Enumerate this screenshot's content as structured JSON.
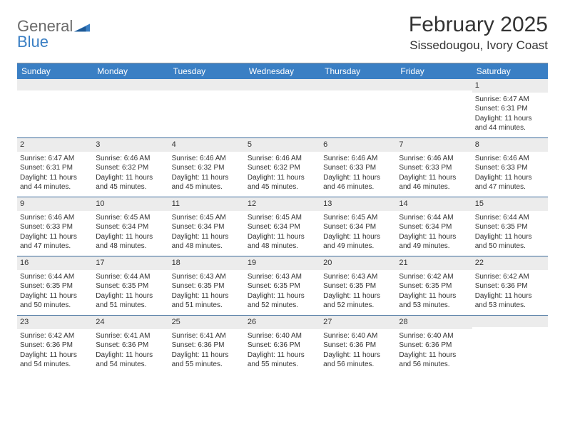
{
  "colors": {
    "header_bg": "#3a7fc4",
    "header_text": "#ffffff",
    "daynum_bg": "#ececec",
    "week_border": "#3a6a9a",
    "body_text": "#333333",
    "logo_gray": "#6a6a6a",
    "logo_blue": "#3a7fc4"
  },
  "logo": {
    "part1": "General",
    "part2": "Blue"
  },
  "title": "February 2025",
  "location": "Sissedougou, Ivory Coast",
  "day_names": [
    "Sunday",
    "Monday",
    "Tuesday",
    "Wednesday",
    "Thursday",
    "Friday",
    "Saturday"
  ],
  "weeks": [
    [
      null,
      null,
      null,
      null,
      null,
      null,
      {
        "n": "1",
        "sr": "Sunrise: 6:47 AM",
        "ss": "Sunset: 6:31 PM",
        "dl1": "Daylight: 11 hours",
        "dl2": "and 44 minutes."
      }
    ],
    [
      {
        "n": "2",
        "sr": "Sunrise: 6:47 AM",
        "ss": "Sunset: 6:31 PM",
        "dl1": "Daylight: 11 hours",
        "dl2": "and 44 minutes."
      },
      {
        "n": "3",
        "sr": "Sunrise: 6:46 AM",
        "ss": "Sunset: 6:32 PM",
        "dl1": "Daylight: 11 hours",
        "dl2": "and 45 minutes."
      },
      {
        "n": "4",
        "sr": "Sunrise: 6:46 AM",
        "ss": "Sunset: 6:32 PM",
        "dl1": "Daylight: 11 hours",
        "dl2": "and 45 minutes."
      },
      {
        "n": "5",
        "sr": "Sunrise: 6:46 AM",
        "ss": "Sunset: 6:32 PM",
        "dl1": "Daylight: 11 hours",
        "dl2": "and 45 minutes."
      },
      {
        "n": "6",
        "sr": "Sunrise: 6:46 AM",
        "ss": "Sunset: 6:33 PM",
        "dl1": "Daylight: 11 hours",
        "dl2": "and 46 minutes."
      },
      {
        "n": "7",
        "sr": "Sunrise: 6:46 AM",
        "ss": "Sunset: 6:33 PM",
        "dl1": "Daylight: 11 hours",
        "dl2": "and 46 minutes."
      },
      {
        "n": "8",
        "sr": "Sunrise: 6:46 AM",
        "ss": "Sunset: 6:33 PM",
        "dl1": "Daylight: 11 hours",
        "dl2": "and 47 minutes."
      }
    ],
    [
      {
        "n": "9",
        "sr": "Sunrise: 6:46 AM",
        "ss": "Sunset: 6:33 PM",
        "dl1": "Daylight: 11 hours",
        "dl2": "and 47 minutes."
      },
      {
        "n": "10",
        "sr": "Sunrise: 6:45 AM",
        "ss": "Sunset: 6:34 PM",
        "dl1": "Daylight: 11 hours",
        "dl2": "and 48 minutes."
      },
      {
        "n": "11",
        "sr": "Sunrise: 6:45 AM",
        "ss": "Sunset: 6:34 PM",
        "dl1": "Daylight: 11 hours",
        "dl2": "and 48 minutes."
      },
      {
        "n": "12",
        "sr": "Sunrise: 6:45 AM",
        "ss": "Sunset: 6:34 PM",
        "dl1": "Daylight: 11 hours",
        "dl2": "and 48 minutes."
      },
      {
        "n": "13",
        "sr": "Sunrise: 6:45 AM",
        "ss": "Sunset: 6:34 PM",
        "dl1": "Daylight: 11 hours",
        "dl2": "and 49 minutes."
      },
      {
        "n": "14",
        "sr": "Sunrise: 6:44 AM",
        "ss": "Sunset: 6:34 PM",
        "dl1": "Daylight: 11 hours",
        "dl2": "and 49 minutes."
      },
      {
        "n": "15",
        "sr": "Sunrise: 6:44 AM",
        "ss": "Sunset: 6:35 PM",
        "dl1": "Daylight: 11 hours",
        "dl2": "and 50 minutes."
      }
    ],
    [
      {
        "n": "16",
        "sr": "Sunrise: 6:44 AM",
        "ss": "Sunset: 6:35 PM",
        "dl1": "Daylight: 11 hours",
        "dl2": "and 50 minutes."
      },
      {
        "n": "17",
        "sr": "Sunrise: 6:44 AM",
        "ss": "Sunset: 6:35 PM",
        "dl1": "Daylight: 11 hours",
        "dl2": "and 51 minutes."
      },
      {
        "n": "18",
        "sr": "Sunrise: 6:43 AM",
        "ss": "Sunset: 6:35 PM",
        "dl1": "Daylight: 11 hours",
        "dl2": "and 51 minutes."
      },
      {
        "n": "19",
        "sr": "Sunrise: 6:43 AM",
        "ss": "Sunset: 6:35 PM",
        "dl1": "Daylight: 11 hours",
        "dl2": "and 52 minutes."
      },
      {
        "n": "20",
        "sr": "Sunrise: 6:43 AM",
        "ss": "Sunset: 6:35 PM",
        "dl1": "Daylight: 11 hours",
        "dl2": "and 52 minutes."
      },
      {
        "n": "21",
        "sr": "Sunrise: 6:42 AM",
        "ss": "Sunset: 6:35 PM",
        "dl1": "Daylight: 11 hours",
        "dl2": "and 53 minutes."
      },
      {
        "n": "22",
        "sr": "Sunrise: 6:42 AM",
        "ss": "Sunset: 6:36 PM",
        "dl1": "Daylight: 11 hours",
        "dl2": "and 53 minutes."
      }
    ],
    [
      {
        "n": "23",
        "sr": "Sunrise: 6:42 AM",
        "ss": "Sunset: 6:36 PM",
        "dl1": "Daylight: 11 hours",
        "dl2": "and 54 minutes."
      },
      {
        "n": "24",
        "sr": "Sunrise: 6:41 AM",
        "ss": "Sunset: 6:36 PM",
        "dl1": "Daylight: 11 hours",
        "dl2": "and 54 minutes."
      },
      {
        "n": "25",
        "sr": "Sunrise: 6:41 AM",
        "ss": "Sunset: 6:36 PM",
        "dl1": "Daylight: 11 hours",
        "dl2": "and 55 minutes."
      },
      {
        "n": "26",
        "sr": "Sunrise: 6:40 AM",
        "ss": "Sunset: 6:36 PM",
        "dl1": "Daylight: 11 hours",
        "dl2": "and 55 minutes."
      },
      {
        "n": "27",
        "sr": "Sunrise: 6:40 AM",
        "ss": "Sunset: 6:36 PM",
        "dl1": "Daylight: 11 hours",
        "dl2": "and 56 minutes."
      },
      {
        "n": "28",
        "sr": "Sunrise: 6:40 AM",
        "ss": "Sunset: 6:36 PM",
        "dl1": "Daylight: 11 hours",
        "dl2": "and 56 minutes."
      },
      null
    ]
  ]
}
